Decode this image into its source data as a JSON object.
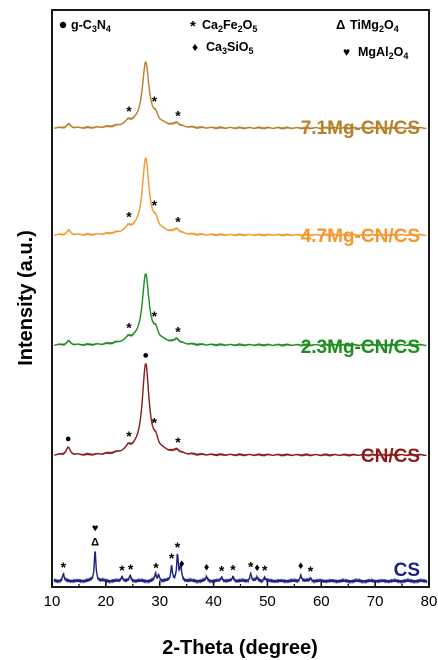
{
  "chart_data": {
    "type": "line",
    "xlabel": "2-Theta (degree)",
    "ylabel": "Intensity (a.u.)",
    "xlim": [
      10,
      80
    ],
    "x_ticks": [
      "10",
      "20",
      "30",
      "40",
      "50",
      "60",
      "70",
      "80"
    ],
    "y_ticks": "none",
    "grid": false,
    "legend": {
      "items": [
        {
          "symbol": "●",
          "label": "g-C3N4"
        },
        {
          "symbol": "*",
          "label": "Ca2Fe2O5"
        },
        {
          "symbol": "Δ",
          "label": "TiMg2O4"
        },
        {
          "symbol": "♦",
          "label": "Ca3SiO5"
        },
        {
          "symbol": "♥",
          "label": "MgAl2O4"
        }
      ]
    },
    "series": [
      {
        "name": "7.1Mg-CN/CS",
        "color": "#b8802a",
        "peaks": [
          [
            13.1,
            5
          ],
          [
            27.4,
            85
          ],
          [
            24.2,
            5
          ],
          [
            29.3,
            8
          ],
          [
            33.2,
            5
          ]
        ],
        "markers": [
          {
            "symbol": "*",
            "x": 24.3
          },
          {
            "symbol": "*",
            "x": 29.0
          },
          {
            "symbol": "*",
            "x": 33.4
          }
        ]
      },
      {
        "name": "4.7Mg-CN/CS",
        "color": "#f5972f",
        "peaks": [
          [
            13.1,
            6
          ],
          [
            27.4,
            100
          ],
          [
            24.2,
            6
          ],
          [
            29.3,
            10
          ],
          [
            33.2,
            6
          ]
        ],
        "markers": [
          {
            "symbol": "*",
            "x": 24.3
          },
          {
            "symbol": "*",
            "x": 29.0
          },
          {
            "symbol": "*",
            "x": 33.4
          }
        ]
      },
      {
        "name": "2.3Mg-CN/CS",
        "color": "#1e8c1e",
        "peaks": [
          [
            13.1,
            5
          ],
          [
            27.4,
            92
          ],
          [
            24.2,
            5
          ],
          [
            29.3,
            10
          ],
          [
            33.2,
            6
          ]
        ],
        "markers": [
          {
            "symbol": "*",
            "x": 24.3
          },
          {
            "symbol": "*",
            "x": 29.0
          },
          {
            "symbol": "*",
            "x": 33.4
          }
        ]
      },
      {
        "name": "CN/CS",
        "color": "#8b1a1a",
        "peaks": [
          [
            13.0,
            10
          ],
          [
            27.4,
            120
          ],
          [
            24.2,
            6
          ],
          [
            29.3,
            10
          ],
          [
            33.2,
            5
          ]
        ],
        "markers": [
          {
            "symbol": "●",
            "x": 13.0
          },
          {
            "symbol": "●",
            "x": 27.4
          },
          {
            "symbol": "*",
            "x": 24.3
          },
          {
            "symbol": "*",
            "x": 29.0
          },
          {
            "symbol": "*",
            "x": 33.4
          }
        ]
      },
      {
        "name": "CS",
        "color": "#1a237e",
        "peaks": [
          [
            12.1,
            10
          ],
          [
            18.0,
            42
          ],
          [
            23.0,
            6
          ],
          [
            24.5,
            8
          ],
          [
            29.2,
            10
          ],
          [
            29.8,
            8
          ],
          [
            32.2,
            20
          ],
          [
            33.3,
            36
          ],
          [
            33.9,
            22
          ],
          [
            38.7,
            6
          ],
          [
            41.5,
            5
          ],
          [
            43.6,
            6
          ],
          [
            46.9,
            10
          ],
          [
            48.1,
            5
          ],
          [
            49.5,
            5
          ],
          [
            56.2,
            8
          ],
          [
            58.0,
            4
          ]
        ],
        "markers": [
          {
            "symbol": "*",
            "x": 12.1
          },
          {
            "symbol": "♥",
            "x": 18.0
          },
          {
            "symbol": "Δ",
            "x": 18.0
          },
          {
            "symbol": "*",
            "x": 23.0
          },
          {
            "symbol": "*",
            "x": 24.6
          },
          {
            "symbol": "*",
            "x": 29.3
          },
          {
            "symbol": "*",
            "x": 32.2
          },
          {
            "symbol": "*",
            "x": 33.3
          },
          {
            "symbol": "♦",
            "x": 34.1
          },
          {
            "symbol": "♦",
            "x": 38.7
          },
          {
            "symbol": "*",
            "x": 41.5
          },
          {
            "symbol": "*",
            "x": 43.6
          },
          {
            "symbol": "*",
            "x": 46.9
          },
          {
            "symbol": "♦",
            "x": 48.1
          },
          {
            "symbol": "*",
            "x": 49.5
          },
          {
            "symbol": "♦",
            "x": 56.2
          },
          {
            "symbol": "*",
            "x": 58.0
          }
        ]
      }
    ]
  }
}
